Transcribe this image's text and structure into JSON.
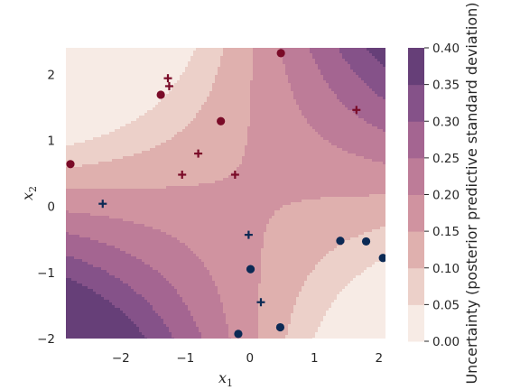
{
  "chart_data": {
    "type": "contour",
    "title": "",
    "xlabel": {
      "base": "x",
      "sub": "1"
    },
    "ylabel": {
      "base": "x",
      "sub": "2"
    },
    "xlim": [
      -2.85,
      2.1
    ],
    "ylim": [
      -2.0,
      2.4
    ],
    "xticks": [
      -2,
      -1,
      0,
      1,
      2
    ],
    "yticks": [
      -2,
      -1,
      0,
      1,
      2
    ],
    "xtick_labels": [
      "−2",
      "−1",
      "0",
      "1",
      "2"
    ],
    "ytick_labels": [
      "−2",
      "−1",
      "0",
      "1",
      "2"
    ],
    "grid": false,
    "colorbar": {
      "label": "Uncertainty (posterior predictive standard deviation)",
      "levels": [
        0.0,
        0.05,
        0.1,
        0.15,
        0.2,
        0.25,
        0.3,
        0.35,
        0.4
      ],
      "tick_labels": [
        "0.00",
        "0.05",
        "0.10",
        "0.15",
        "0.20",
        "0.25",
        "0.30",
        "0.35",
        "0.40"
      ],
      "colors": [
        "#f7ebe5",
        "#ecd0c9",
        "#dfb0ae",
        "#d093a0",
        "#bd7c98",
        "#a46591",
        "#855289",
        "#663f78",
        "#452a57"
      ]
    },
    "series": [
      {
        "marker": "circle",
        "color": "#7a0b28",
        "points": [
          [
            0.48,
            2.32
          ],
          [
            -1.38,
            1.69
          ],
          [
            -0.45,
            1.29
          ],
          [
            -2.78,
            0.64
          ]
        ]
      },
      {
        "marker": "plus",
        "color": "#7a0b28",
        "points": [
          [
            -1.27,
            1.94
          ],
          [
            -1.25,
            1.82
          ],
          [
            1.65,
            1.46
          ],
          [
            -0.8,
            0.8
          ],
          [
            -1.05,
            0.48
          ],
          [
            -0.23,
            0.48
          ]
        ]
      },
      {
        "marker": "circle",
        "color": "#0c2a55",
        "points": [
          [
            1.4,
            -0.52
          ],
          [
            1.8,
            -0.53
          ],
          [
            2.06,
            -0.78
          ],
          [
            0.01,
            -0.95
          ],
          [
            0.47,
            -1.83
          ],
          [
            -0.18,
            -1.93
          ]
        ]
      },
      {
        "marker": "plus",
        "color": "#0c2a55",
        "points": [
          [
            -2.28,
            0.04
          ],
          [
            -0.02,
            -0.43
          ],
          [
            0.17,
            -1.45
          ]
        ]
      }
    ]
  }
}
